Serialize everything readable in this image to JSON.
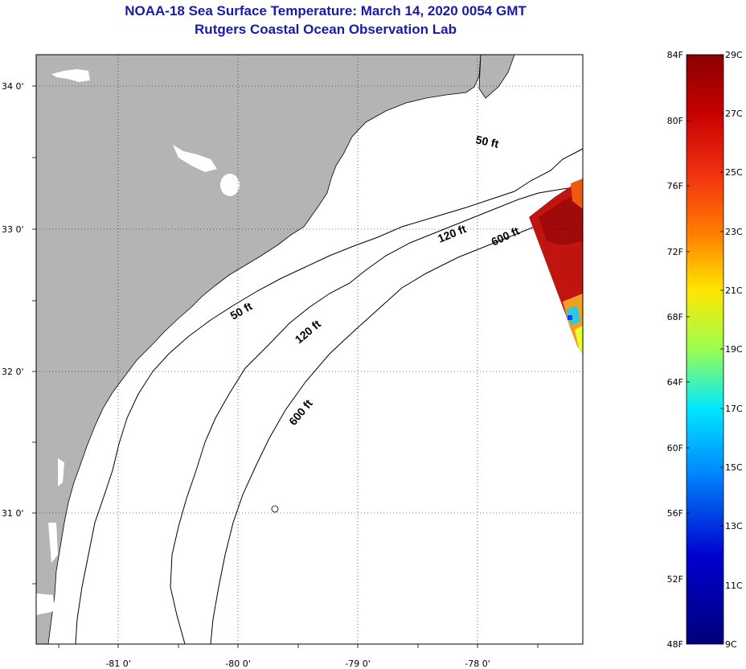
{
  "title": "NOAA-18 Sea Surface Temperature:  March 14, 2020 0054 GMT",
  "subtitle": "Rutgers Coastal Ocean Observation Lab",
  "map": {
    "lat_labels": [
      "34 0'",
      "33 0'",
      "32 0'",
      "31 0'"
    ],
    "lon_labels": [
      "-81 0'",
      "-80 0'",
      "-79 0'",
      "-78 0'"
    ],
    "contours": [
      "50 ft",
      "50 ft",
      "120 ft",
      "120 ft",
      "600 ft",
      "600 ft"
    ],
    "colors": {
      "land": "#b4b4b4",
      "water": "#ffffff"
    }
  },
  "colorbar": {
    "fahrenheit": [
      "84F",
      "80F",
      "76F",
      "72F",
      "68F",
      "64F",
      "60F",
      "56F",
      "52F",
      "48F"
    ],
    "celsius": [
      "29C",
      "27C",
      "25C",
      "23C",
      "21C",
      "19C",
      "17C",
      "15C",
      "13C",
      "11C",
      "9C"
    ],
    "gradient": [
      "#8b0000",
      "#e01010",
      "#ff7a00",
      "#ffe600",
      "#9aff50",
      "#00e8ff",
      "#0070ff",
      "#0000c8",
      "#00007a"
    ]
  }
}
